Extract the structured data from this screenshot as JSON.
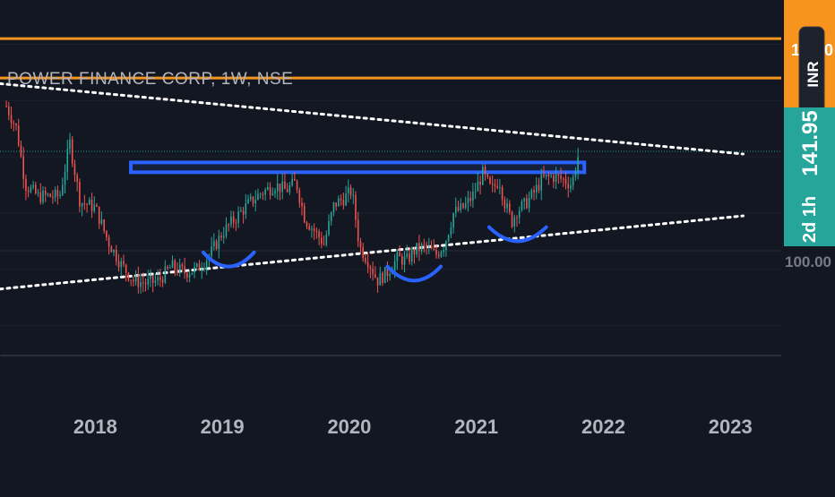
{
  "chart_data": {
    "type": "candlestick",
    "title": "POWER FINANCE CORP, 1W, NSE",
    "currency": "INR",
    "x_ticks": [
      "2018",
      "2019",
      "2020",
      "2021",
      "2022",
      "2023"
    ],
    "xlim": [
      2017.25,
      2023.4
    ],
    "ylim": [
      70,
      190
    ],
    "last_price": "141.95",
    "last_price_value": 141.95,
    "countdown": "2d 1h",
    "axis_partial_top": "1",
    "axis_partial_top_right": "0",
    "axis_partial_lower": "100.00",
    "colors": {
      "up": "#26a69a",
      "down": "#ef5350",
      "orange": "#f7941d",
      "blue": "#2962ff",
      "dotted": "#ffffff",
      "price_line": "#26a69a",
      "price_label_bg": "#26a69a",
      "orange_label_bg": "#f7941d"
    },
    "horizontal_levels": [
      182,
      168
    ],
    "resistance_zone": [
      138,
      134.5
    ],
    "trendline_upper": {
      "start": [
        2017.25,
        166
      ],
      "end": [
        2023.1,
        141
      ]
    },
    "trendline_lower": {
      "start": [
        2017.25,
        93
      ],
      "end": [
        2023.1,
        119
      ]
    },
    "arcs": [
      {
        "x1": 2018.85,
        "x2": 2019.25,
        "y": 106,
        "depth": 5
      },
      {
        "x1": 2020.3,
        "x2": 2020.72,
        "y": 101,
        "depth": 5
      },
      {
        "x1": 2021.1,
        "x2": 2021.55,
        "y": 115,
        "depth": 5
      }
    ],
    "series": [
      {
        "type": "close",
        "x": [
          2017.3,
          2017.38,
          2017.45,
          2017.55,
          2017.65,
          2017.72,
          2017.8,
          2017.88,
          2018.0,
          2018.1,
          2018.2,
          2018.3,
          2018.4,
          2018.5,
          2018.6,
          2018.7,
          2018.8,
          2018.9,
          2019.0,
          2019.1,
          2019.2,
          2019.3,
          2019.42,
          2019.5,
          2019.58,
          2019.65,
          2019.72,
          2019.8,
          2019.88,
          2019.95,
          2020.02,
          2020.08,
          2020.15,
          2020.22,
          2020.3,
          2020.38,
          2020.45,
          2020.52,
          2020.6,
          2020.68,
          2020.75,
          2020.82,
          2020.9,
          2020.97,
          2021.05,
          2021.12,
          2021.18,
          2021.22,
          2021.28,
          2021.32,
          2021.38,
          2021.45,
          2021.52,
          2021.6,
          2021.68,
          2021.75,
          2021.78,
          2021.8
        ],
        "values": [
          158,
          150,
          130,
          126,
          126,
          126,
          145,
          124,
          122,
          110,
          102,
          96,
          95,
          96,
          101,
          99,
          100,
          105,
          113,
          118,
          123,
          127,
          130,
          128,
          131,
          118,
          114,
          109,
          123,
          125,
          128,
          108,
          103,
          96,
          99,
          104,
          103,
          107,
          108,
          105,
          109,
          120,
          122,
          126,
          134,
          128,
          132,
          124,
          117,
          121,
          123,
          127,
          132,
          133,
          132,
          130,
          136,
          140
        ]
      }
    ]
  }
}
